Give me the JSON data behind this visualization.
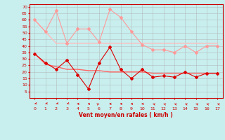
{
  "x": [
    0,
    1,
    2,
    3,
    4,
    5,
    6,
    7,
    8,
    9,
    10,
    11,
    12,
    13,
    14,
    15,
    16,
    17
  ],
  "rafales": [
    60,
    51,
    67,
    42,
    53,
    53,
    43,
    68,
    62,
    51,
    41,
    37,
    37,
    35,
    40,
    35,
    40,
    40
  ],
  "moyen": [
    34,
    27,
    22,
    29,
    18,
    7,
    27,
    39,
    22,
    15,
    22,
    16,
    17,
    16,
    20,
    16,
    19,
    19
  ],
  "tendance_rafales": [
    60,
    51,
    42,
    42,
    42,
    42,
    42,
    42,
    42,
    42,
    42,
    42,
    42,
    42,
    42,
    42,
    42,
    42
  ],
  "tendance_moyen": [
    34,
    26,
    24,
    22,
    22,
    21,
    21,
    20,
    20,
    20,
    20,
    19,
    19,
    19,
    19,
    19,
    19,
    19
  ],
  "bg_color": "#c8eeee",
  "grid_color": "#b0b0b0",
  "line_rafales_color": "#ff9999",
  "line_moyen_color": "#dd0000",
  "line_tendance_rafales_color": "#ffbbbb",
  "line_tendance_moyen_color": "#ff6666",
  "xlabel": "Vent moyen/en rafales ( km/h )",
  "xlabel_color": "#cc0000",
  "tick_color": "#cc0000",
  "spine_color": "#cc0000",
  "ylim": [
    0,
    72
  ],
  "yticks": [
    5,
    10,
    15,
    20,
    25,
    30,
    35,
    40,
    45,
    50,
    55,
    60,
    65,
    70
  ],
  "arrow_angles_deg": [
    225,
    225,
    225,
    225,
    270,
    270,
    45,
    270,
    270,
    270,
    270,
    315,
    315,
    315,
    315,
    315,
    315,
    315
  ]
}
